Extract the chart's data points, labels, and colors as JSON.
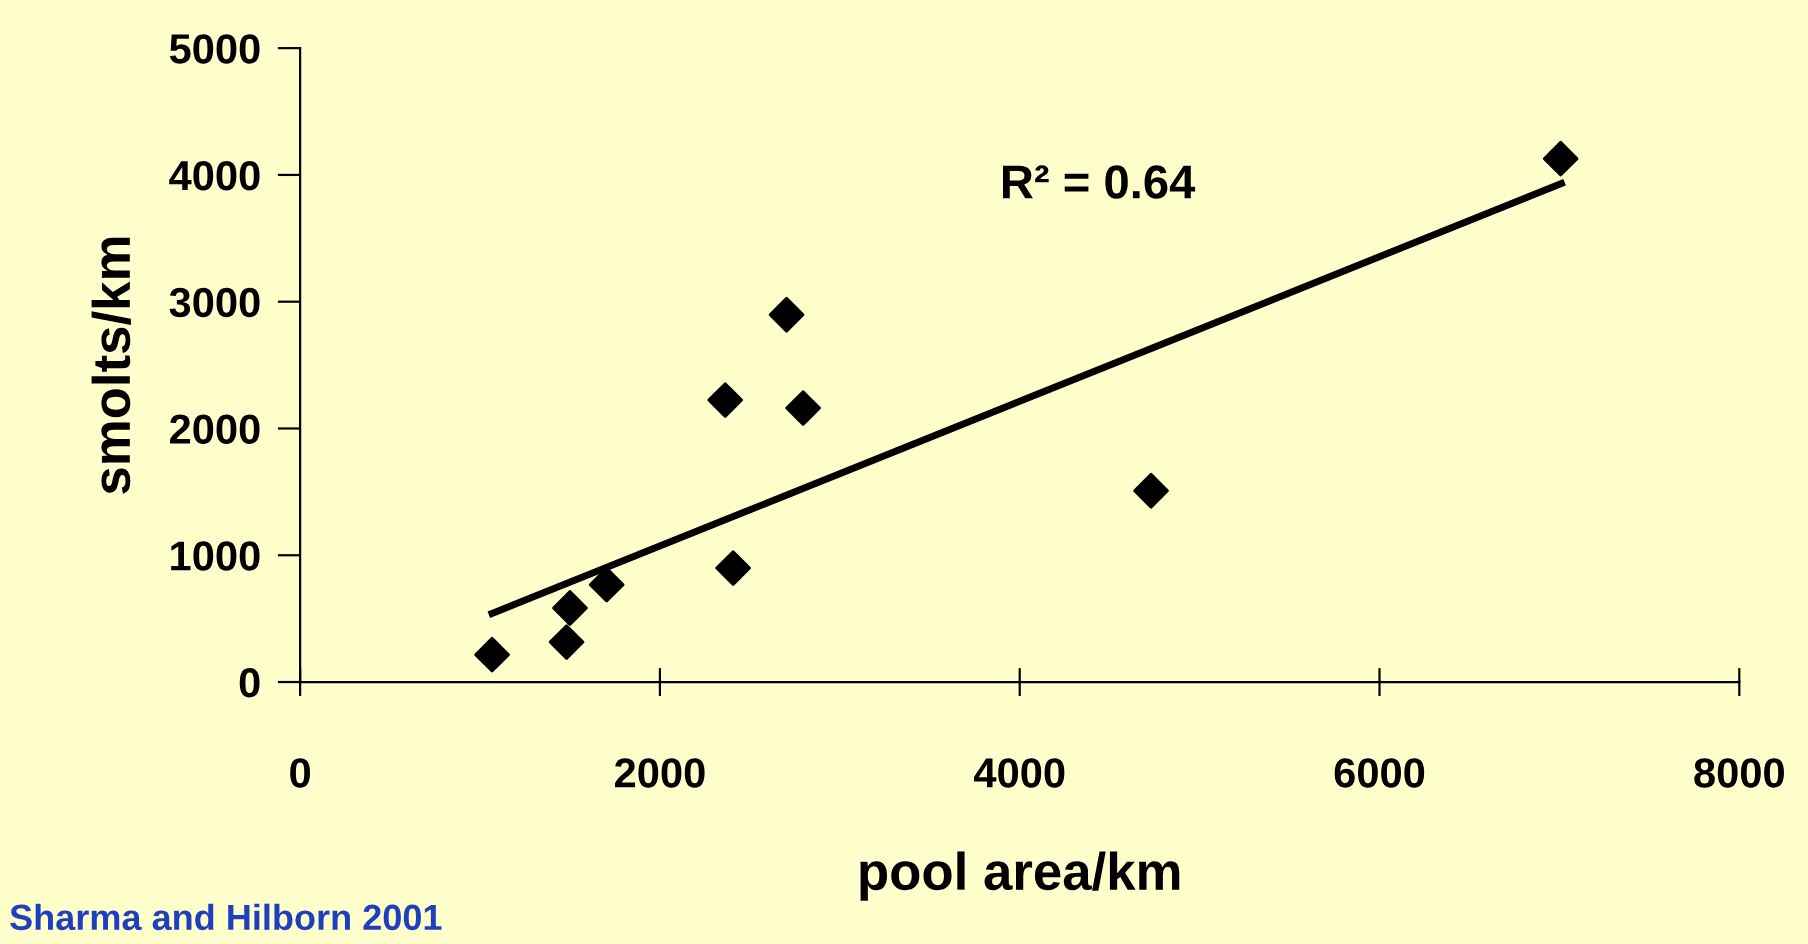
{
  "chart_data": {
    "type": "scatter",
    "xlabel": "pool area/km",
    "ylabel": "smolts/km",
    "annotations": [
      "R² = 0.64",
      "Sharma and Hilborn 2001"
    ],
    "x": [
      1067,
      1481,
      1500,
      1704,
      2363,
      2704,
      2796,
      2407,
      4730,
      7007
    ],
    "series": [
      {
        "color": "#000000",
        "values": [
          216,
          315,
          584,
          768,
          2224,
          2897,
          2161,
          899,
          1509,
          4128
        ],
        "marker": "diamond"
      },
      {
        "type": "line",
        "color": "#000000",
        "x": [
          1067,
          7011
        ],
        "values": [
          541,
          3932
        ],
        "marker": "none",
        "line_style": "solid"
      }
    ],
    "xlim": [
      0,
      8000
    ],
    "xticks": [
      0,
      2000,
      4000,
      6000,
      8000
    ],
    "ylim": [
      0,
      5000
    ],
    "yticks": [
      0,
      1000,
      2000,
      3000,
      4000,
      5000
    ],
    "grid": false,
    "legend": false
  }
}
